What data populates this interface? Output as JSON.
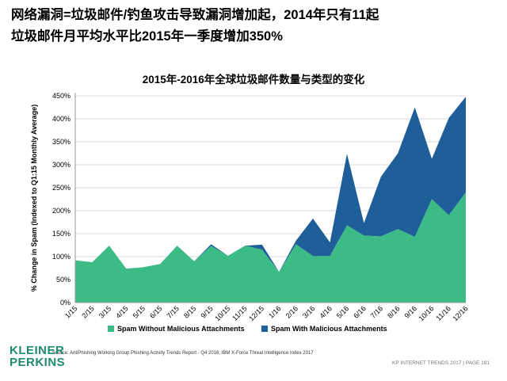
{
  "slide": {
    "title_line1": "网络漏洞=垃圾邮件/钓鱼攻击导致漏洞增加起，2014年只有11起",
    "title_line2": "垃圾邮件月平均水平比2015年一季度增加350%",
    "source": "Source: AntiPhishing Working Group Phishing Activity Trends Report - Q4 2016; IBM X-Force Threat Intelligence Index 2017",
    "logo_line1": "KLEINER",
    "logo_line2": "PERKINS",
    "footer": "KP INTERNET TRENDS 2017  |  PAGE 191"
  },
  "colors": {
    "without": "#3dbb86",
    "with": "#1f5f99",
    "grid": "#d9d9d9",
    "logo": "#1f8a6f"
  },
  "chart_data": {
    "type": "area",
    "stacked": true,
    "title": "2015年-2016年全球垃圾邮件数量与类型的变化",
    "ylabel": "% Change in Spam (Indexed to Q1:15 Monthly Average)",
    "xlabel": "",
    "ylim": [
      0,
      450
    ],
    "yticks": [
      0,
      50,
      100,
      150,
      200,
      250,
      300,
      350,
      400,
      450
    ],
    "ytick_labels": [
      "0%",
      "50%",
      "100%",
      "150%",
      "200%",
      "250%",
      "300%",
      "350%",
      "400%",
      "450%"
    ],
    "categories": [
      "1/15",
      "2/15",
      "3/15",
      "4/15",
      "5/15",
      "6/15",
      "7/15",
      "8/15",
      "9/15",
      "10/15",
      "11/15",
      "12/15",
      "1/16",
      "2/16",
      "3/16",
      "4/16",
      "5/16",
      "6/16",
      "7/16",
      "8/16",
      "9/16",
      "10/16",
      "11/16",
      "12/16"
    ],
    "series": [
      {
        "name": "Spam Without Malicious Attachments",
        "values": [
          92,
          88,
          124,
          74,
          77,
          84,
          124,
          90,
          123,
          102,
          124,
          115,
          67,
          127,
          101,
          101,
          168,
          146,
          144,
          160,
          143,
          225,
          190,
          240
        ]
      },
      {
        "name": "Spam With Malicious Attachments",
        "values": [
          0,
          0,
          0,
          0,
          0,
          0,
          0,
          0,
          4,
          0,
          0,
          11,
          0,
          8,
          82,
          30,
          156,
          27,
          130,
          165,
          282,
          88,
          212,
          208
        ]
      }
    ],
    "grid": true,
    "legend": "bottom"
  }
}
